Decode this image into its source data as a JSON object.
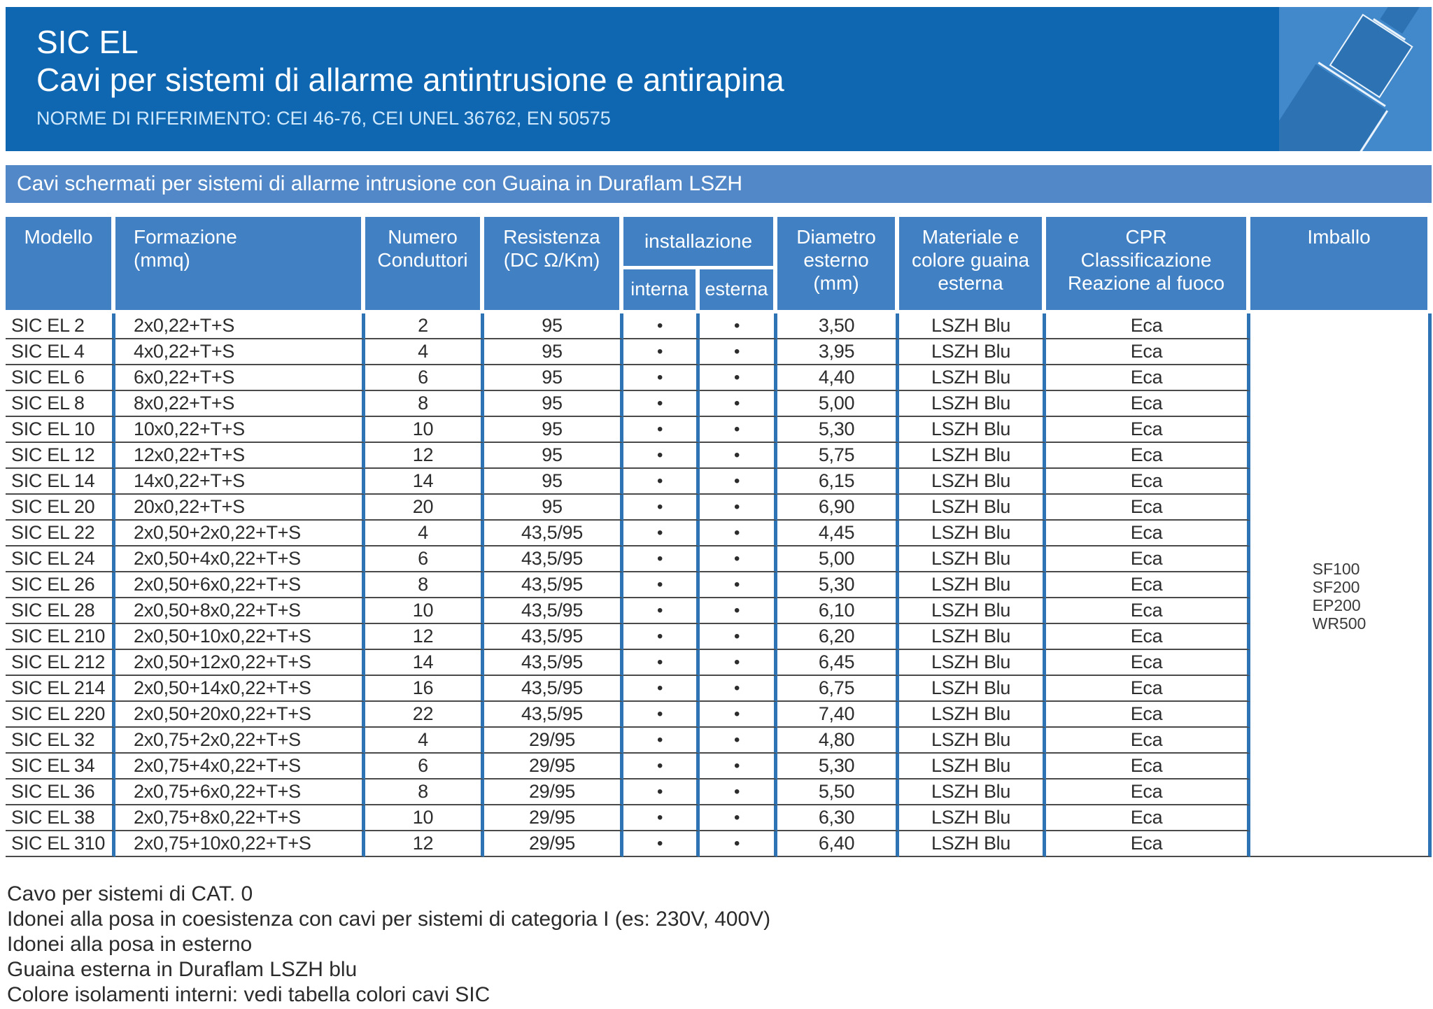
{
  "header": {
    "product": "SIC EL",
    "title": "Cavi per sistemi di allarme antintrusione e antirapina",
    "norms": "NORME DI RIFERIMENTO: CEI 46-76, CEI UNEL 36762, EN 50575"
  },
  "band": {
    "text": "Cavi schermati per sistemi di allarme intrusione con Guaina in Duraflam LSZH"
  },
  "table": {
    "headers": {
      "model": "Modello",
      "formation": "Formazione\n(mmq)",
      "conductors": "Numero\nConduttori",
      "resistance": "Resistenza\n(DC Ω/Km)",
      "installation": "installazione",
      "internal": "interna",
      "external": "esterna",
      "diameter": "Diametro\nesterno\n(mm)",
      "sheath": "Materiale e\ncolore guaina\nesterna",
      "cpr": "CPR\nClassificazione\nReazione al fuoco",
      "packaging": "Imballo"
    },
    "rows": [
      {
        "model": "SIC EL 2",
        "formation": "2x0,22+T+S",
        "conductors": "2",
        "resistance": "95",
        "internal": "•",
        "external": "•",
        "diameter": "3,50",
        "sheath": "LSZH Blu",
        "cpr": "Eca"
      },
      {
        "model": "SIC EL 4",
        "formation": "4x0,22+T+S",
        "conductors": "4",
        "resistance": "95",
        "internal": "•",
        "external": "•",
        "diameter": "3,95",
        "sheath": "LSZH Blu",
        "cpr": "Eca"
      },
      {
        "model": "SIC EL 6",
        "formation": "6x0,22+T+S",
        "conductors": "6",
        "resistance": "95",
        "internal": "•",
        "external": "•",
        "diameter": "4,40",
        "sheath": "LSZH Blu",
        "cpr": "Eca"
      },
      {
        "model": "SIC EL 8",
        "formation": "8x0,22+T+S",
        "conductors": "8",
        "resistance": "95",
        "internal": "•",
        "external": "•",
        "diameter": "5,00",
        "sheath": "LSZH Blu",
        "cpr": "Eca"
      },
      {
        "model": "SIC EL 10",
        "formation": "10x0,22+T+S",
        "conductors": "10",
        "resistance": "95",
        "internal": "•",
        "external": "•",
        "diameter": "5,30",
        "sheath": "LSZH Blu",
        "cpr": "Eca"
      },
      {
        "model": "SIC EL 12",
        "formation": "12x0,22+T+S",
        "conductors": "12",
        "resistance": "95",
        "internal": "•",
        "external": "•",
        "diameter": "5,75",
        "sheath": "LSZH Blu",
        "cpr": "Eca"
      },
      {
        "model": "SIC EL 14",
        "formation": "14x0,22+T+S",
        "conductors": "14",
        "resistance": "95",
        "internal": "•",
        "external": "•",
        "diameter": "6,15",
        "sheath": "LSZH Blu",
        "cpr": "Eca"
      },
      {
        "model": "SIC EL 20",
        "formation": "20x0,22+T+S",
        "conductors": "20",
        "resistance": "95",
        "internal": "•",
        "external": "•",
        "diameter": "6,90",
        "sheath": "LSZH Blu",
        "cpr": "Eca"
      },
      {
        "model": "SIC EL 22",
        "formation": "2x0,50+2x0,22+T+S",
        "conductors": "4",
        "resistance": "43,5/95",
        "internal": "•",
        "external": "•",
        "diameter": "4,45",
        "sheath": "LSZH Blu",
        "cpr": "Eca"
      },
      {
        "model": "SIC EL 24",
        "formation": "2x0,50+4x0,22+T+S",
        "conductors": "6",
        "resistance": "43,5/95",
        "internal": "•",
        "external": "•",
        "diameter": "5,00",
        "sheath": "LSZH Blu",
        "cpr": "Eca"
      },
      {
        "model": "SIC EL 26",
        "formation": "2x0,50+6x0,22+T+S",
        "conductors": "8",
        "resistance": "43,5/95",
        "internal": "•",
        "external": "•",
        "diameter": "5,30",
        "sheath": "LSZH Blu",
        "cpr": "Eca"
      },
      {
        "model": "SIC EL 28",
        "formation": "2x0,50+8x0,22+T+S",
        "conductors": "10",
        "resistance": "43,5/95",
        "internal": "•",
        "external": "•",
        "diameter": "6,10",
        "sheath": "LSZH Blu",
        "cpr": "Eca"
      },
      {
        "model": "SIC EL 210",
        "formation": "2x0,50+10x0,22+T+S",
        "conductors": "12",
        "resistance": "43,5/95",
        "internal": "•",
        "external": "•",
        "diameter": "6,20",
        "sheath": "LSZH Blu",
        "cpr": "Eca"
      },
      {
        "model": "SIC EL 212",
        "formation": "2x0,50+12x0,22+T+S",
        "conductors": "14",
        "resistance": "43,5/95",
        "internal": "•",
        "external": "•",
        "diameter": "6,45",
        "sheath": "LSZH Blu",
        "cpr": "Eca"
      },
      {
        "model": "SIC EL 214",
        "formation": "2x0,50+14x0,22+T+S",
        "conductors": "16",
        "resistance": "43,5/95",
        "internal": "•",
        "external": "•",
        "diameter": "6,75",
        "sheath": "LSZH Blu",
        "cpr": "Eca"
      },
      {
        "model": "SIC EL 220",
        "formation": "2x0,50+20x0,22+T+S",
        "conductors": "22",
        "resistance": "43,5/95",
        "internal": "•",
        "external": "•",
        "diameter": "7,40",
        "sheath": "LSZH Blu",
        "cpr": "Eca"
      },
      {
        "model": "SIC EL 32",
        "formation": "2x0,75+2x0,22+T+S",
        "conductors": "4",
        "resistance": "29/95",
        "internal": "•",
        "external": "•",
        "diameter": "4,80",
        "sheath": "LSZH Blu",
        "cpr": "Eca"
      },
      {
        "model": "SIC EL 34",
        "formation": "2x0,75+4x0,22+T+S",
        "conductors": "6",
        "resistance": "29/95",
        "internal": "•",
        "external": "•",
        "diameter": "5,30",
        "sheath": "LSZH Blu",
        "cpr": "Eca"
      },
      {
        "model": "SIC EL 36",
        "formation": "2x0,75+6x0,22+T+S",
        "conductors": "8",
        "resistance": "29/95",
        "internal": "•",
        "external": "•",
        "diameter": "5,50",
        "sheath": "LSZH Blu",
        "cpr": "Eca"
      },
      {
        "model": "SIC EL 38",
        "formation": "2x0,75+8x0,22+T+S",
        "conductors": "10",
        "resistance": "29/95",
        "internal": "•",
        "external": "•",
        "diameter": "6,30",
        "sheath": "LSZH Blu",
        "cpr": "Eca"
      },
      {
        "model": "SIC EL 310",
        "formation": "2x0,75+10x0,22+T+S",
        "conductors": "12",
        "resistance": "29/95",
        "internal": "•",
        "external": "•",
        "diameter": "6,40",
        "sheath": "LSZH Blu",
        "cpr": "Eca"
      }
    ],
    "packaging_options": [
      "SF100",
      "SF200",
      "EP200",
      "WR500"
    ]
  },
  "notes": [
    "Cavo per sistemi di CAT. 0",
    "Idonei alla posa in coesistenza con cavi per sistemi di categoria I (es: 230V, 400V)",
    "Idonei alla posa in esterno",
    "Guaina esterna in Duraflam LSZH blu",
    "Colore isolamenti interni: vedi tabella colori cavi SIC"
  ],
  "colors": {
    "header_blue": "#0f67b1",
    "band_blue": "#5288c7",
    "table_header_blue": "#4180c3",
    "border_blue": "#2e74b5",
    "row_line": "#4a4a4a",
    "norms_text": "#cfe8fb",
    "icon_bg": "#4189ca",
    "icon_shape": "#2d73b4"
  }
}
